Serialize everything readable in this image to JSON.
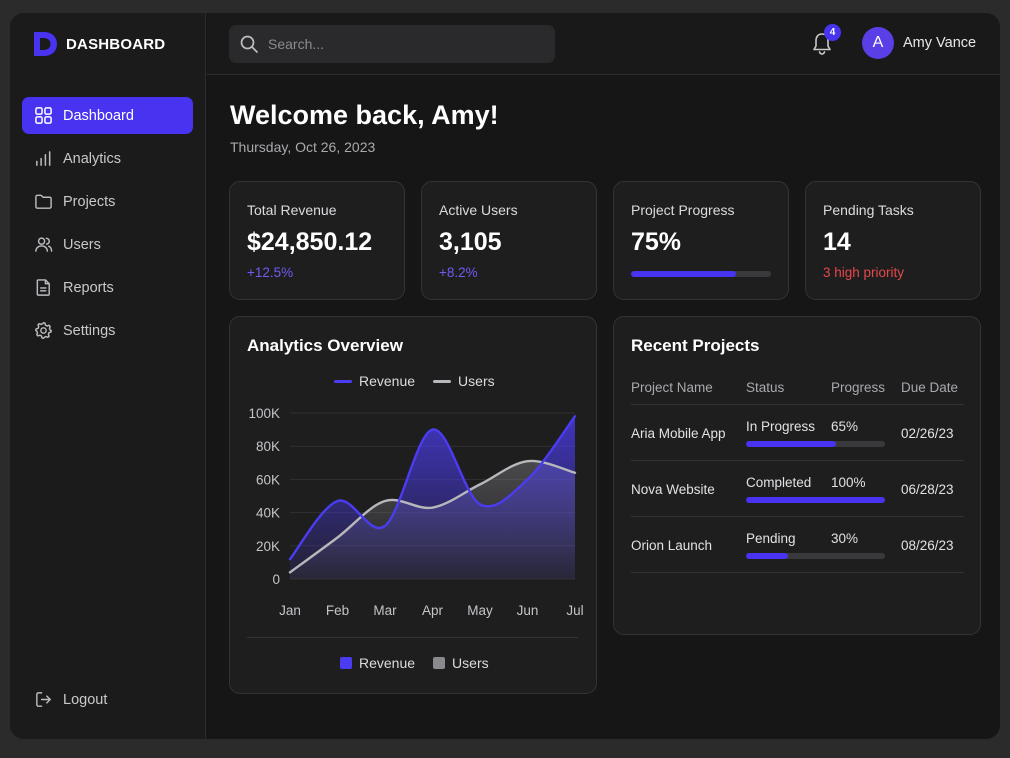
{
  "sidebar": {
    "logo_text": "DASHBOARD",
    "items": [
      {
        "label": "Dashboard",
        "icon": "grid-icon",
        "active": true
      },
      {
        "label": "Analytics",
        "icon": "bar-chart-icon"
      },
      {
        "label": "Projects",
        "icon": "folder-icon"
      },
      {
        "label": "Users",
        "icon": "users-icon"
      },
      {
        "label": "Reports",
        "icon": "document-icon"
      },
      {
        "label": "Settings",
        "icon": "gear-icon"
      }
    ],
    "logout_label": "Logout"
  },
  "topbar": {
    "search_placeholder": "Search...",
    "notification_count": "4",
    "avatar_initial": "A",
    "user_name": "Amy Vance"
  },
  "main": {
    "welcome": "Welcome back, Amy!",
    "date": "Thursday, Oct 26, 2023"
  },
  "stats": [
    {
      "label": "Total Revenue",
      "value": "$24,850.12",
      "sub": "+12.5%"
    },
    {
      "label": "Active Users",
      "value": "3,105",
      "sub": "+8.2%"
    },
    {
      "label": "Project Progress",
      "value": "75%",
      "progress": 0.75
    },
    {
      "label": "Pending Tasks",
      "value": "14",
      "sub": "3 high priority"
    }
  ],
  "analytics": {
    "title": "Analytics Overview",
    "legend": [
      "Revenue",
      "Users"
    ]
  },
  "chart_data": {
    "type": "area",
    "title": "Analytics Overview",
    "categories": [
      "Jan",
      "Feb",
      "Mar",
      "Apr",
      "May",
      "Jun",
      "Jul"
    ],
    "y_ticks": [
      "0",
      "20K",
      "40K",
      "60K",
      "80K",
      "100K"
    ],
    "ylim": [
      0,
      100000
    ],
    "legend_position": "top and bottom",
    "series": [
      {
        "name": "Revenue",
        "color": "#4b3cf2",
        "values": [
          12000,
          47000,
          32000,
          90000,
          45000,
          60000,
          98000
        ]
      },
      {
        "name": "Users",
        "color": "#b8b8bc",
        "values": [
          4000,
          25000,
          47000,
          43000,
          57000,
          71000,
          64000
        ]
      }
    ]
  },
  "projects": {
    "title": "Recent Projects",
    "headers": [
      "Project Name",
      "Status",
      "Progress",
      "Due Date"
    ],
    "rows": [
      {
        "name": "Aria Mobile App",
        "status": "In Progress",
        "progress_label": "65%",
        "progress": 0.65,
        "due": "02/26/23"
      },
      {
        "name": "Nova Website",
        "status": "Completed",
        "progress_label": "100%",
        "progress": 1.0,
        "due": "06/28/23"
      },
      {
        "name": "Orion Launch",
        "status": "Pending",
        "progress_label": "30%",
        "progress": 0.3,
        "due": "08/26/23"
      }
    ]
  },
  "colors": {
    "accent": "#4733f0",
    "positive": "#6f5cf5",
    "danger": "#e5484d"
  }
}
